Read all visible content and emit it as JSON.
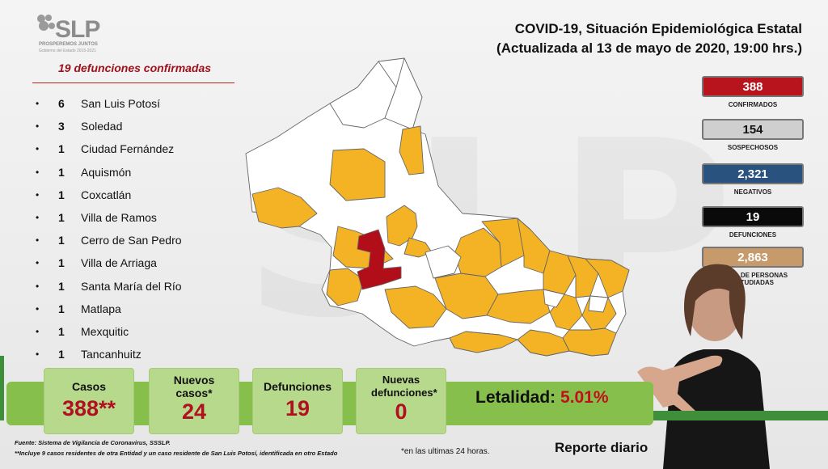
{
  "logo": {
    "name": "SLP",
    "tagline": "PROSPEREMOS JUNTOS",
    "subtitle": "Gobierno del Estado 2015-2021"
  },
  "header": {
    "title": "COVID-19, Situación Epidemiológica Estatal",
    "updated": "(Actualizada al 13 de mayo de 2020, 19:00 hrs.)"
  },
  "deaths": {
    "title": "19 defunciones confirmadas",
    "bullet": "•",
    "items": [
      {
        "count": "6",
        "place": "San Luis Potosí"
      },
      {
        "count": "3",
        "place": "Soledad"
      },
      {
        "count": "1",
        "place": "Ciudad Fernández"
      },
      {
        "count": "1",
        "place": "Aquismón"
      },
      {
        "count": "1",
        "place": "Coxcatlán"
      },
      {
        "count": "1",
        "place": "Villa de Ramos"
      },
      {
        "count": "1",
        "place": "Cerro de San Pedro"
      },
      {
        "count": "1",
        "place": "Villa de Arriaga"
      },
      {
        "count": "1",
        "place": "Santa María del Río"
      },
      {
        "count": "1",
        "place": "Matlapa"
      },
      {
        "count": "1",
        "place": "Mexquitic"
      },
      {
        "count": "1",
        "place": "Tancanhuitz"
      }
    ]
  },
  "stats": [
    {
      "value": "388",
      "label": "CONFIRMADOS",
      "bg": "#b8141e",
      "color": "#ffffff"
    },
    {
      "value": "154",
      "label": "SOSPECHOSOS",
      "bg": "#cfcfcf",
      "color": "#111111"
    },
    {
      "value": "2,321",
      "label": "NEGATIVOS",
      "bg": "#2a527e",
      "color": "#ffffff"
    },
    {
      "value": "19",
      "label": "DEFUNCIONES",
      "bg": "#0a0a0a",
      "color": "#ffffff"
    },
    {
      "value": "2,863",
      "label": "TOTAL DE PERSONAS ESTUDIADAS",
      "bg": "#c79a6c",
      "color": "#ffffff"
    }
  ],
  "cards": {
    "casos": {
      "label": "Casos",
      "value": "388**"
    },
    "nuevos": {
      "label": "Nuevos casos*",
      "value": "24"
    },
    "defunciones": {
      "label": "Defunciones",
      "value": "19"
    },
    "nuevas_def": {
      "label": "Nuevas defunciones*",
      "value": "0"
    }
  },
  "lethality": {
    "label": "Letalidad:",
    "value": "5.01%"
  },
  "footer": {
    "source": "Fuente: Sistema de Vigilancia de Coronavirus, SSSLP.",
    "note2": "**Incluye 9 casos residentes de otra Entidad y un caso residente de San Luis Potosí, identificada en otro Estado",
    "note1": "*en las ultimas 24 horas.",
    "report": "Reporte diario"
  },
  "colors": {
    "map_orange": "#f4b325",
    "map_red": "#b20e1a",
    "map_white": "#ffffff",
    "green": "#86bf4b",
    "card_green": "#b7d98c"
  }
}
